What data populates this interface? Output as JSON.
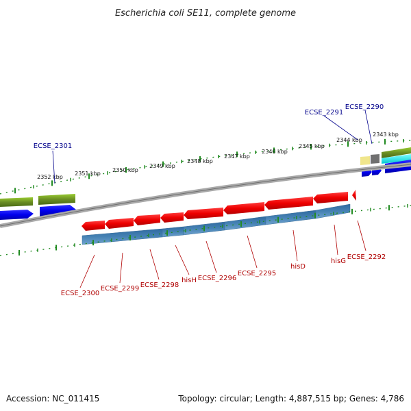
{
  "title": "Escherichia coli SE11, complete genome",
  "footer": {
    "accession": "Accession: NC_011415",
    "summary": "Topology: circular; Length: 4,887,515 bp; Genes: 4,786"
  },
  "colors": {
    "forward_gene": "#0000ee",
    "forward_cds": "#6b8e23",
    "reverse_gene": "#ee0000",
    "reverse_cds": "#4682b4",
    "backbone": "#808080",
    "ticks": "#228b22",
    "label_forward": "#00008b",
    "label_reverse": "#b00000"
  },
  "tick_labels": [
    "2352 kbp",
    "2351 kbp",
    "2350 kbp",
    "2349 kbp",
    "2348 kbp",
    "2347 kbp",
    "2346 kbp",
    "2345 kbp",
    "2344 kbp",
    "2343 kbp"
  ],
  "forward_labels": [
    "ECSE_2301",
    "ECSE_2291",
    "ECSE_2290"
  ],
  "reverse_labels": [
    "ECSE_2300",
    "ECSE_2299",
    "ECSE_2298",
    "hisH",
    "ECSE_2296",
    "ECSE_2295",
    "hisD",
    "hisG",
    "ECSE_2292"
  ]
}
